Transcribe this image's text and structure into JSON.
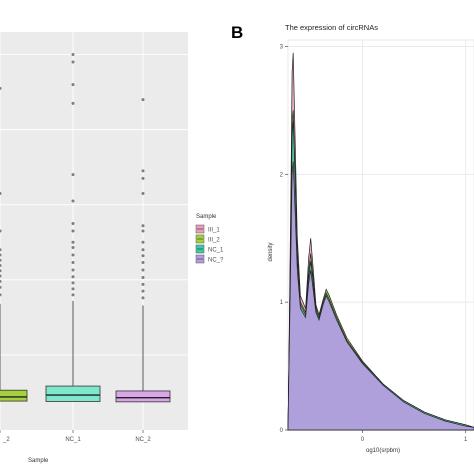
{
  "chart_data": [
    {
      "type": "box",
      "xlabel": "Sample",
      "categories": [
        "_2",
        "NC_1",
        "NC_2"
      ],
      "colors": [
        "#a6d13e",
        "#7ee8cc",
        "#d9a6e8"
      ],
      "boxes": [
        {
          "q1": 3.85,
          "median": 4.4,
          "q3": 5.3,
          "whisker_high": 16.8
        },
        {
          "q1": 3.8,
          "median": 4.65,
          "q3": 5.85,
          "whisker_high": 17.2
        },
        {
          "q1": 3.75,
          "median": 4.3,
          "q3": 5.2,
          "whisker_high": 16.6
        }
      ],
      "outliers": [
        [
          18,
          19,
          19.8,
          20.5,
          21.2,
          21.9,
          22.6,
          23.3,
          24,
          26.5,
          31.5,
          45.5
        ],
        [
          18,
          18.8,
          19.6,
          20.4,
          21.3,
          22.3,
          23.3,
          24.3,
          25,
          26.5,
          27.5,
          30.5,
          34,
          43.5,
          46,
          49,
          50
        ],
        [
          17.6,
          18.5,
          19.4,
          20.3,
          21.3,
          22.3,
          23.2,
          24,
          25,
          26.5,
          27.2,
          31.5,
          33.5,
          34.5,
          44
        ]
      ],
      "ylim": [
        0,
        53
      ]
    },
    {
      "type": "density",
      "panel_label": "B",
      "title": "The expression of circRNAs",
      "xlabel": "og10(srpbm)",
      "ylabel": "density",
      "xlim": [
        -0.72,
        1.08
      ],
      "ylim": [
        0,
        3.05
      ],
      "x_ticks": [
        0,
        1
      ],
      "y_ticks": [
        0,
        1,
        2,
        3
      ],
      "legend": {
        "title": "Sample",
        "entries": [
          {
            "label": "III_1",
            "color": "#e8a0b8"
          },
          {
            "label": "III_2",
            "color": "#a6d13e"
          },
          {
            "label": "NC_1",
            "color": "#3ec9a8"
          },
          {
            "label": "NC_?",
            "color": "#b49cde"
          }
        ]
      },
      "series": [
        {
          "label": "III_1",
          "points": [
            [
              -0.72,
              0
            ],
            [
              -0.71,
              0.6
            ],
            [
              -0.69,
              2.0
            ],
            [
              -0.68,
              2.8
            ],
            [
              -0.67,
              2.95
            ],
            [
              -0.66,
              2.6
            ],
            [
              -0.63,
              1.5
            ],
            [
              -0.6,
              1.05
            ],
            [
              -0.55,
              0.95
            ],
            [
              -0.52,
              1.35
            ],
            [
              -0.5,
              1.5
            ],
            [
              -0.48,
              1.3
            ],
            [
              -0.45,
              0.98
            ],
            [
              -0.42,
              0.9
            ],
            [
              -0.38,
              1.0
            ],
            [
              -0.35,
              1.08
            ],
            [
              -0.32,
              1.03
            ],
            [
              -0.25,
              0.88
            ],
            [
              -0.15,
              0.7
            ],
            [
              0,
              0.52
            ],
            [
              0.2,
              0.35
            ],
            [
              0.4,
              0.22
            ],
            [
              0.6,
              0.13
            ],
            [
              0.8,
              0.07
            ],
            [
              1.0,
              0.03
            ],
            [
              1.08,
              0.02
            ]
          ]
        },
        {
          "label": "III_2",
          "points": [
            [
              -0.72,
              0
            ],
            [
              -0.71,
              0.55
            ],
            [
              -0.69,
              1.8
            ],
            [
              -0.68,
              2.42
            ],
            [
              -0.67,
              2.5
            ],
            [
              -0.66,
              2.25
            ],
            [
              -0.63,
              1.4
            ],
            [
              -0.6,
              1.0
            ],
            [
              -0.55,
              0.92
            ],
            [
              -0.52,
              1.25
            ],
            [
              -0.5,
              1.38
            ],
            [
              -0.48,
              1.22
            ],
            [
              -0.45,
              0.96
            ],
            [
              -0.42,
              0.9
            ],
            [
              -0.38,
              1.02
            ],
            [
              -0.35,
              1.1
            ],
            [
              -0.32,
              1.05
            ],
            [
              -0.25,
              0.9
            ],
            [
              -0.15,
              0.72
            ],
            [
              0,
              0.54
            ],
            [
              0.2,
              0.36
            ],
            [
              0.4,
              0.23
            ],
            [
              0.6,
              0.14
            ],
            [
              0.8,
              0.08
            ],
            [
              1.0,
              0.04
            ],
            [
              1.08,
              0.02
            ]
          ]
        },
        {
          "label": "NC_1",
          "points": [
            [
              -0.72,
              0
            ],
            [
              -0.71,
              0.55
            ],
            [
              -0.69,
              1.7
            ],
            [
              -0.68,
              2.3
            ],
            [
              -0.67,
              2.42
            ],
            [
              -0.66,
              2.2
            ],
            [
              -0.63,
              1.35
            ],
            [
              -0.6,
              0.98
            ],
            [
              -0.55,
              0.9
            ],
            [
              -0.52,
              1.2
            ],
            [
              -0.5,
              1.32
            ],
            [
              -0.48,
              1.18
            ],
            [
              -0.45,
              0.94
            ],
            [
              -0.42,
              0.88
            ],
            [
              -0.38,
              1.0
            ],
            [
              -0.35,
              1.07
            ],
            [
              -0.32,
              1.02
            ],
            [
              -0.25,
              0.88
            ],
            [
              -0.15,
              0.7
            ],
            [
              0,
              0.53
            ],
            [
              0.2,
              0.36
            ],
            [
              0.4,
              0.23
            ],
            [
              0.6,
              0.14
            ],
            [
              0.8,
              0.08
            ],
            [
              1.0,
              0.04
            ],
            [
              1.08,
              0.02
            ]
          ]
        },
        {
          "label": "NC_?",
          "points": [
            [
              -0.72,
              0
            ],
            [
              -0.71,
              0.5
            ],
            [
              -0.69,
              1.5
            ],
            [
              -0.68,
              2.0
            ],
            [
              -0.67,
              2.1
            ],
            [
              -0.66,
              1.9
            ],
            [
              -0.63,
              1.25
            ],
            [
              -0.6,
              0.95
            ],
            [
              -0.55,
              0.88
            ],
            [
              -0.52,
              1.15
            ],
            [
              -0.5,
              1.25
            ],
            [
              -0.48,
              1.12
            ],
            [
              -0.45,
              0.92
            ],
            [
              -0.42,
              0.86
            ],
            [
              -0.38,
              0.98
            ],
            [
              -0.35,
              1.05
            ],
            [
              -0.32,
              1.0
            ],
            [
              -0.25,
              0.86
            ],
            [
              -0.15,
              0.69
            ],
            [
              0,
              0.52
            ],
            [
              0.2,
              0.35
            ],
            [
              0.4,
              0.22
            ],
            [
              0.6,
              0.13
            ],
            [
              0.8,
              0.07
            ],
            [
              1.0,
              0.03
            ],
            [
              1.08,
              0.02
            ]
          ]
        }
      ]
    }
  ]
}
